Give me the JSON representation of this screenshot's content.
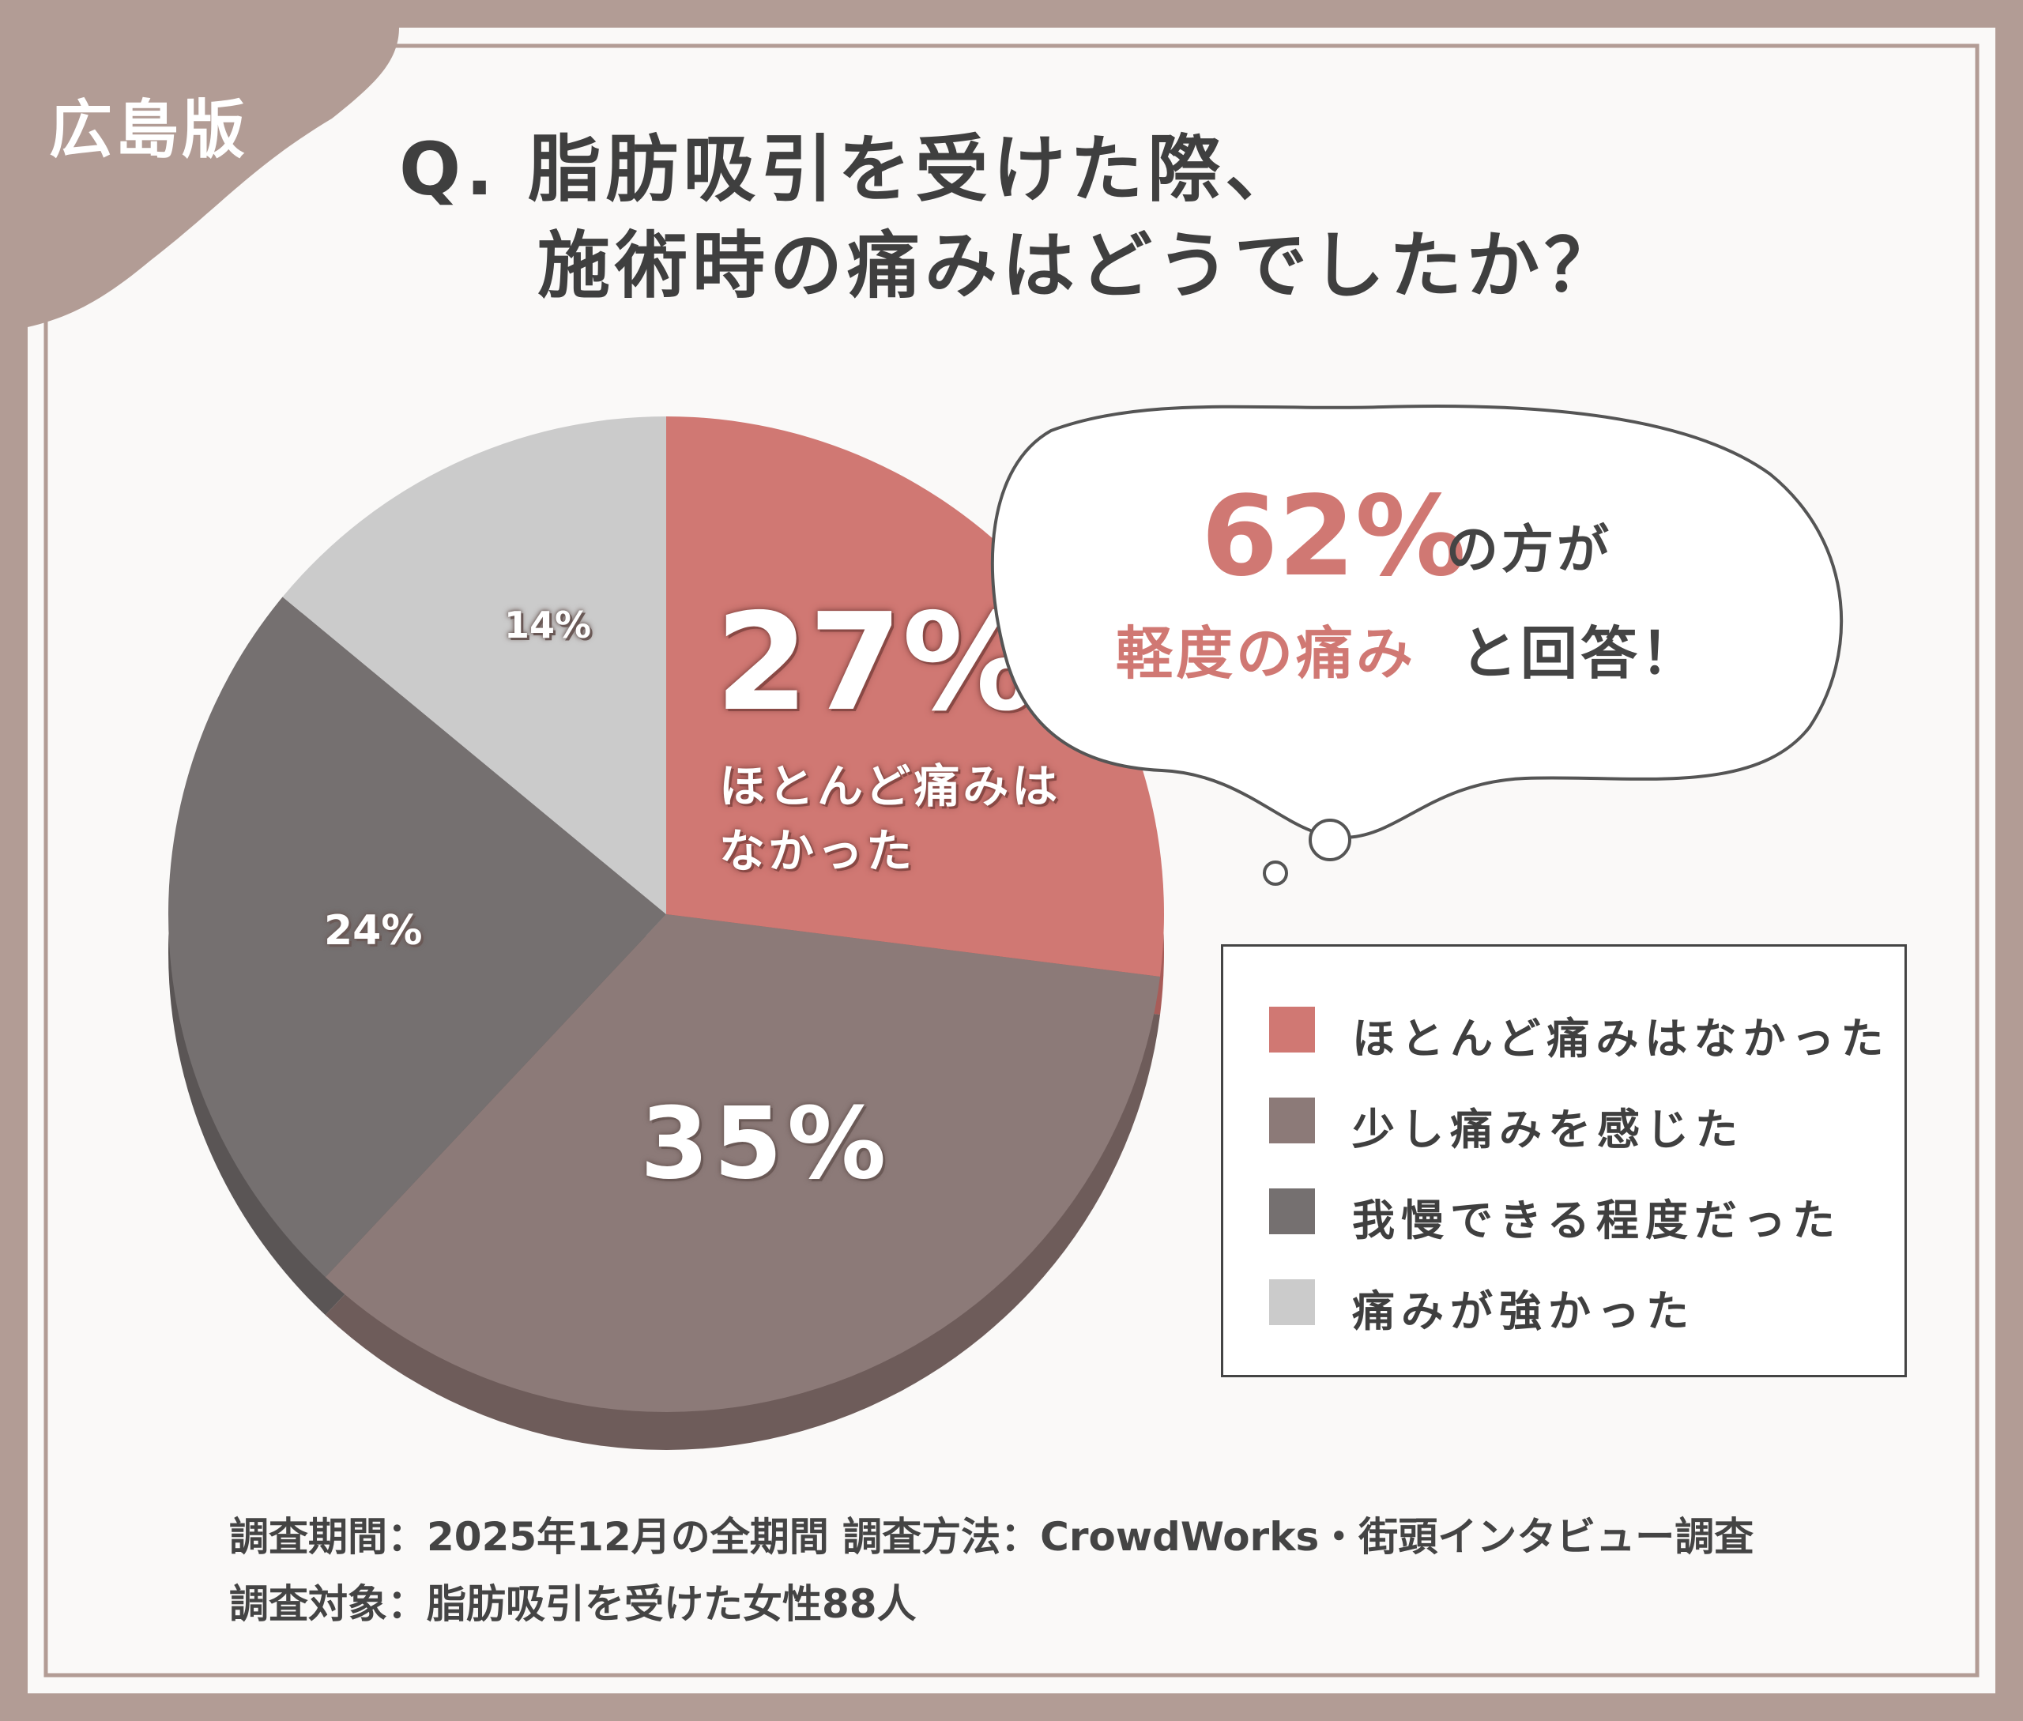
{
  "badge": "広島版",
  "title": {
    "line1": "Q. 脂肪吸引を受けた際、",
    "line2": "施術時の痛みはどうでしたか？"
  },
  "callout": {
    "percent": "62%",
    "text1": "の方が",
    "highlight": "軽度の痛み",
    "text2": "と回答！"
  },
  "colors": {
    "none": "#d07873",
    "slight": "#8c7a78",
    "bearable": "#757070",
    "strong": "#cbcbcb",
    "frame": "#b29c95"
  },
  "chart_data": {
    "type": "pie",
    "slices": [
      {
        "label": "ほとんど痛みはなかった",
        "value": 27,
        "display": "27%",
        "sublabel_line1": "ほとんど痛みは",
        "sublabel_line2": "なかった"
      },
      {
        "label": "少し痛みを感じた",
        "value": 35,
        "display": "35%"
      },
      {
        "label": "我慢できる程度だった",
        "value": 24,
        "display": "24%"
      },
      {
        "label": "痛みが強かった",
        "value": 14,
        "display": "14%"
      }
    ],
    "legend_position": "right"
  },
  "footer": {
    "line1": "調査期間：2025年12月の全期間  調査方法：CrowdWorks・街頭インタビュー調査",
    "line2": "調査対象：脂肪吸引を受けた女性88人"
  }
}
